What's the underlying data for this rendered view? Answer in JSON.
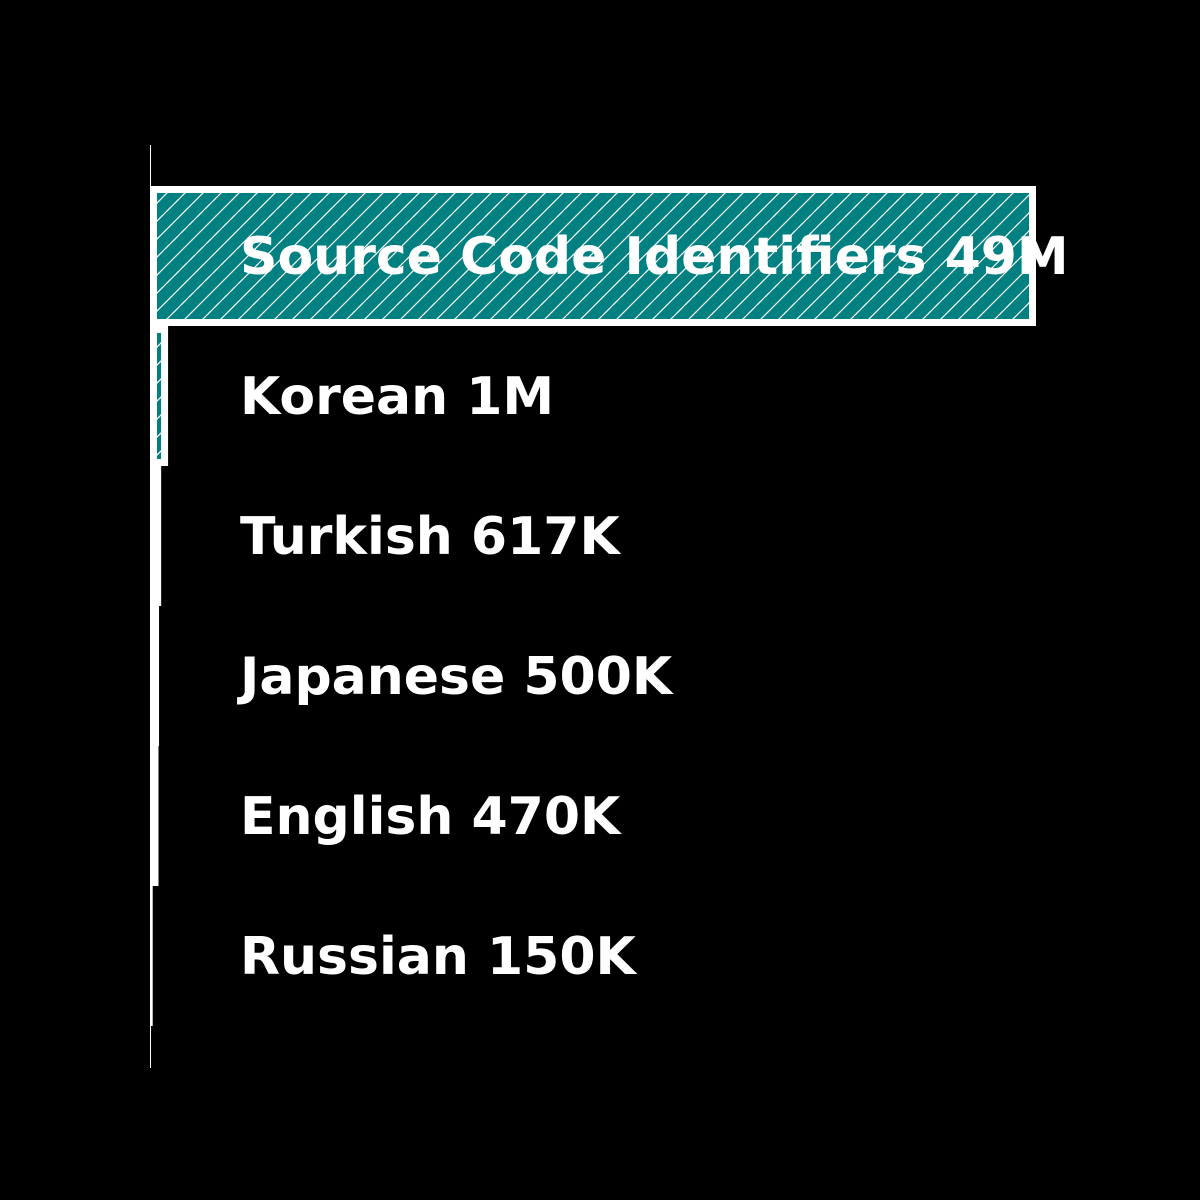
{
  "chart_data": {
    "type": "bar",
    "orientation": "horizontal",
    "categories": [
      "Source Code Identifiers",
      "Korean",
      "Turkish",
      "Japanese",
      "English",
      "Russian"
    ],
    "values": [
      49000000,
      1000000,
      617000,
      500000,
      470000,
      150000
    ],
    "labels": [
      "Source Code Identifiers 49M",
      "Korean 1M",
      "Turkish 617K",
      "Japanese 500K",
      "English 470K",
      "Russian 150K"
    ],
    "title": "",
    "xlabel": "",
    "ylabel": "",
    "xlim": [
      0,
      49000000
    ],
    "grid": false,
    "legend": "none",
    "colors": {
      "background": "#000000",
      "bar_fill": "#008080",
      "bar_edge": "#ffffff",
      "hatch": "#ffffff",
      "text": "#ffffff",
      "axis": "#ffffff"
    }
  }
}
